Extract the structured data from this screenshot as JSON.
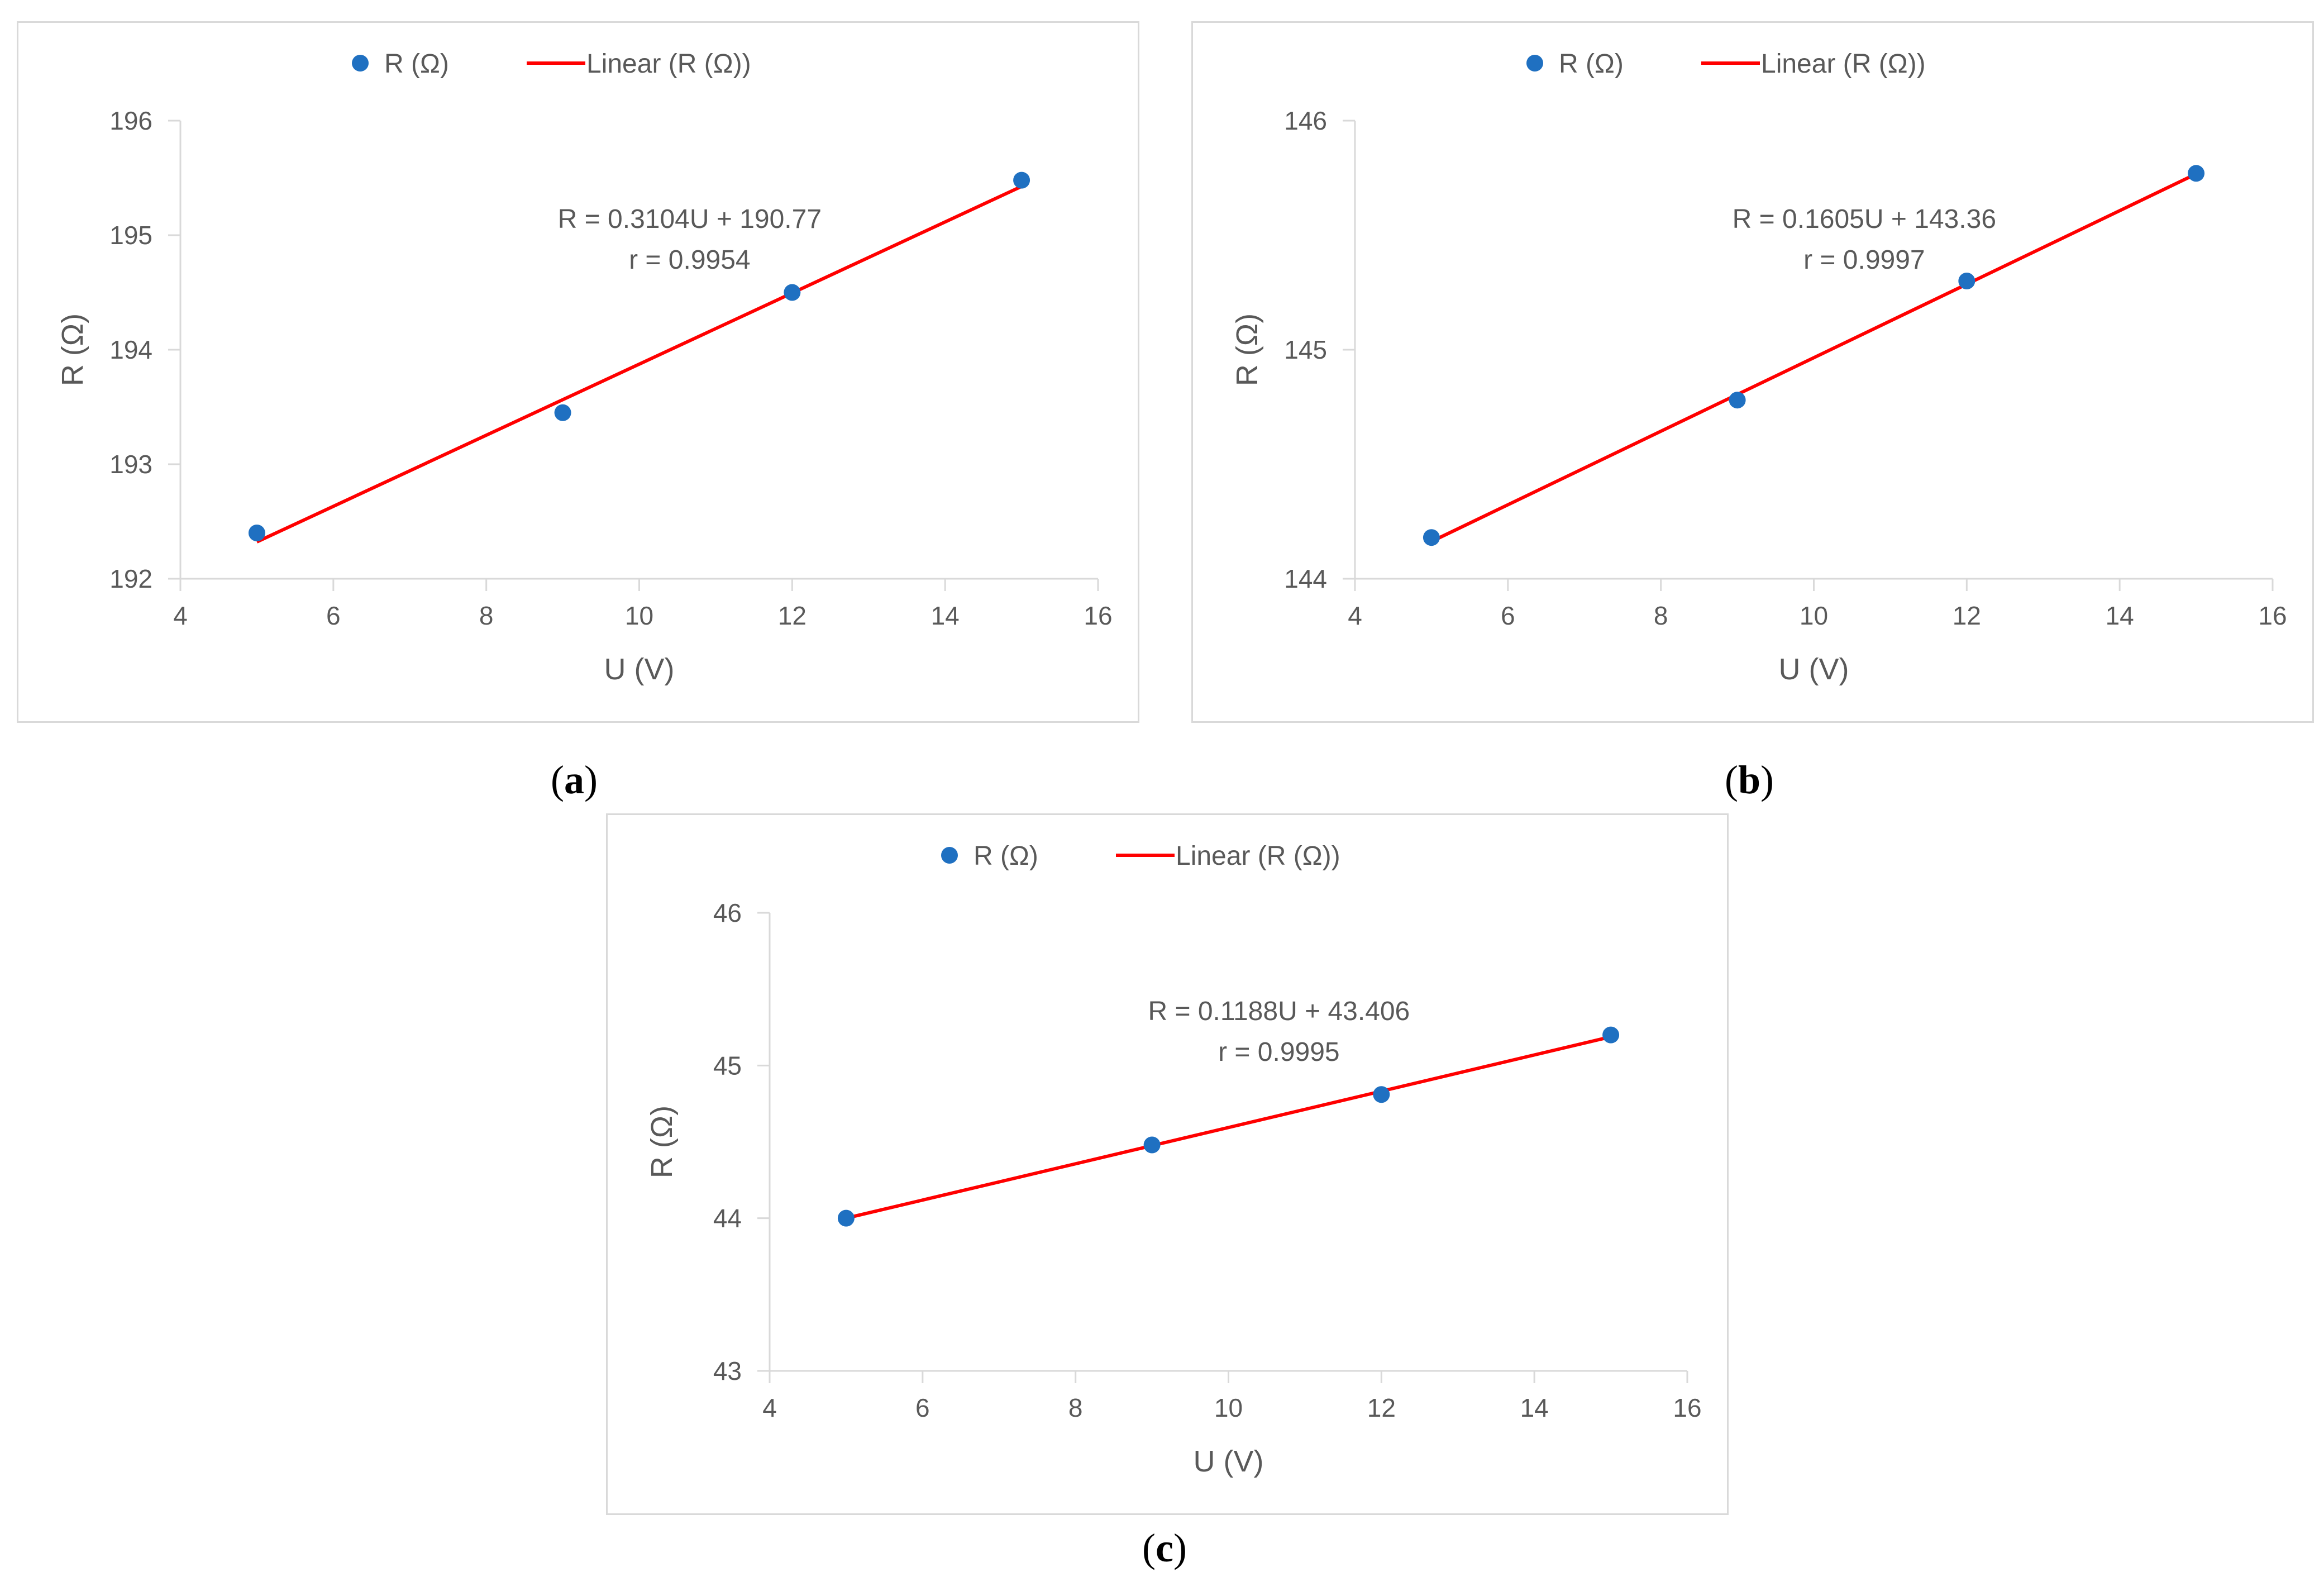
{
  "colors": {
    "marker": "#1f70c1",
    "trendline": "#ff0000",
    "axis": "#d9d9d9",
    "text": "#595959",
    "border": "#d9d9d9"
  },
  "legend": {
    "marker_label": "R (Ω)",
    "trend_label": "Linear (R (Ω))"
  },
  "chart_data": [
    {
      "id": "a",
      "panel_label": "a",
      "type": "scatter",
      "series": [
        {
          "name": "R (Ω)",
          "x": [
            5,
            9,
            12,
            15
          ],
          "y": [
            192.4,
            193.45,
            194.5,
            195.48
          ]
        },
        {
          "name": "Linear (R (Ω))",
          "kind": "trendline",
          "slope": 0.3104,
          "intercept": 190.77
        }
      ],
      "xlabel": "U (V)",
      "ylabel": "R (Ω)",
      "xlim": [
        4,
        16
      ],
      "ylim": [
        192,
        196
      ],
      "xticks": [
        4,
        6,
        8,
        10,
        12,
        14,
        16
      ],
      "yticks": [
        192,
        193,
        194,
        195,
        196
      ],
      "equation": "R = 0.3104U + 190.77",
      "r_value": "r = 0.9954",
      "legend_position": "top-center",
      "grid": false
    },
    {
      "id": "b",
      "panel_label": "b",
      "type": "scatter",
      "series": [
        {
          "name": "R (Ω)",
          "x": [
            5,
            9,
            12,
            15
          ],
          "y": [
            144.18,
            144.78,
            145.3,
            145.77
          ]
        },
        {
          "name": "Linear (R (Ω))",
          "kind": "trendline",
          "slope": 0.1605,
          "intercept": 143.36
        }
      ],
      "xlabel": "U (V)",
      "ylabel": "R (Ω)",
      "xlim": [
        4,
        16
      ],
      "ylim": [
        144,
        146
      ],
      "xticks": [
        4,
        6,
        8,
        10,
        12,
        14,
        16
      ],
      "yticks": [
        144,
        145,
        146
      ],
      "equation": "R = 0.1605U + 143.36",
      "r_value": "r = 0.9997",
      "legend_position": "top-center",
      "grid": false
    },
    {
      "id": "c",
      "panel_label": "c",
      "type": "scatter",
      "series": [
        {
          "name": "R (Ω)",
          "x": [
            5,
            9,
            12,
            15
          ],
          "y": [
            44.0,
            44.48,
            44.81,
            45.2
          ]
        },
        {
          "name": "Linear (R (Ω))",
          "kind": "trendline",
          "slope": 0.1188,
          "intercept": 43.406
        }
      ],
      "xlabel": "U (V)",
      "ylabel": "R (Ω)",
      "xlim": [
        4,
        16
      ],
      "ylim": [
        43,
        46
      ],
      "xticks": [
        4,
        6,
        8,
        10,
        12,
        14,
        16
      ],
      "yticks": [
        43,
        44,
        45,
        46
      ],
      "equation": "R = 0.1188U + 43.406",
      "r_value": "r = 0.9995",
      "legend_position": "top-center",
      "grid": false
    }
  ]
}
